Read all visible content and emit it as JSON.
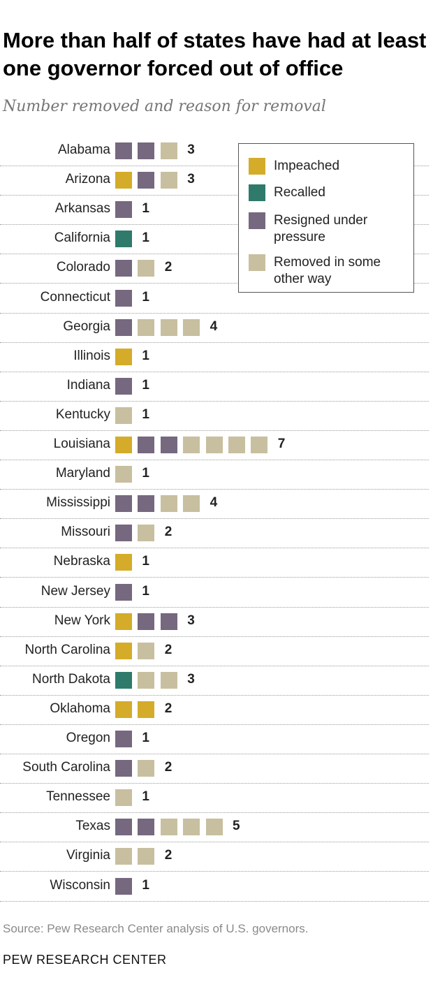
{
  "title": "More than half of states have had at least one governor forced out of office",
  "subtitle": "Number removed and reason for removal",
  "source": "Source: Pew Research Center analysis of U.S. governors.",
  "brand": "PEW RESEARCH CENTER",
  "colors": {
    "impeached": "#d4ac2a",
    "recalled": "#2f7a6b",
    "resigned": "#75687f",
    "other": "#c7bf9f"
  },
  "legend": [
    {
      "key": "impeached",
      "label": "Impeached"
    },
    {
      "key": "recalled",
      "label": "Recalled"
    },
    {
      "key": "resigned",
      "label": "Resigned under pressure"
    },
    {
      "key": "other",
      "label": "Removed in some other way"
    }
  ],
  "chart_data": {
    "type": "bar",
    "title": "More than half of states have had at least one governor forced out of office",
    "subtitle": "Number removed and reason for removal",
    "legend_position": "top-right",
    "categories": [
      "Alabama",
      "Arizona",
      "Arkansas",
      "California",
      "Colorado",
      "Connecticut",
      "Georgia",
      "Illinois",
      "Indiana",
      "Kentucky",
      "Louisiana",
      "Maryland",
      "Mississippi",
      "Missouri",
      "Nebraska",
      "New Jersey",
      "New York",
      "North Carolina",
      "North Dakota",
      "Oklahoma",
      "Oregon",
      "South Carolina",
      "Tennessee",
      "Texas",
      "Virginia",
      "Wisconsin"
    ],
    "series": [
      {
        "name": "Impeached",
        "values": [
          0,
          1,
          0,
          0,
          0,
          0,
          0,
          1,
          0,
          0,
          1,
          0,
          0,
          0,
          1,
          0,
          1,
          1,
          0,
          2,
          0,
          0,
          0,
          0,
          0,
          0
        ]
      },
      {
        "name": "Recalled",
        "values": [
          0,
          0,
          0,
          1,
          0,
          0,
          0,
          0,
          0,
          0,
          0,
          0,
          0,
          0,
          0,
          0,
          0,
          0,
          1,
          0,
          0,
          0,
          0,
          0,
          0,
          0
        ]
      },
      {
        "name": "Resigned under pressure",
        "values": [
          2,
          1,
          1,
          0,
          1,
          1,
          1,
          0,
          1,
          0,
          2,
          0,
          2,
          1,
          0,
          1,
          2,
          0,
          0,
          0,
          1,
          1,
          0,
          2,
          0,
          1
        ]
      },
      {
        "name": "Removed in some other way",
        "values": [
          1,
          1,
          0,
          0,
          1,
          0,
          3,
          0,
          0,
          1,
          4,
          1,
          2,
          1,
          0,
          0,
          0,
          1,
          2,
          0,
          0,
          1,
          1,
          3,
          2,
          0
        ]
      }
    ],
    "totals": [
      "3",
      "3",
      "1",
      "1",
      "2",
      "1",
      "4",
      "1",
      "1",
      "1",
      "7",
      "1",
      "4",
      "2",
      "1",
      "1",
      "3",
      "2",
      "3",
      "2",
      "1",
      "2",
      "1",
      "5",
      "2",
      "1"
    ]
  }
}
